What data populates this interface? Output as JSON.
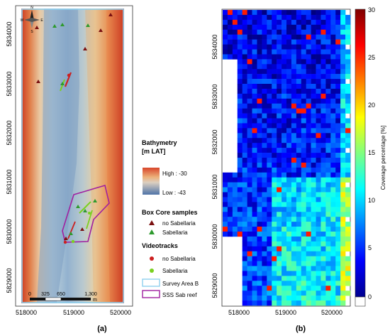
{
  "panel_a": {
    "label": "(a)",
    "x_ticks": [
      "518000",
      "519000",
      "520000"
    ],
    "y_ticks": [
      "5834000",
      "5833000",
      "5832000",
      "5831000",
      "5830000",
      "5829000"
    ],
    "compass": {
      "n": "N",
      "s": "S",
      "e": "E",
      "w": "W"
    },
    "scale_bar": {
      "ticks": [
        "0",
        "325",
        "650",
        "1,300"
      ],
      "unit": "m"
    },
    "legend": {
      "bathymetry_title": "Bathymetry",
      "bathymetry_unit": "[m LAT]",
      "high_label": "High : -30",
      "low_label": "Low : -43",
      "boxcore_title": "Box Core samples",
      "boxcore_items": [
        "no Sabellaria",
        "Sabellaria"
      ],
      "video_title": "Videotracks",
      "video_items": [
        "no Sabellaria",
        "Sabellaria"
      ],
      "survey_area": "Survey Area B",
      "sss_reef": "SSS Sab reef"
    },
    "colors": {
      "survey_outline": "#8fd0ee",
      "reef_outline": "#a020a0",
      "no_sab_boxcore": "#7a1010",
      "sab_boxcore": "#2e9a2e",
      "no_sab_video": "#cc2020",
      "sab_video": "#7ad020",
      "bathy_high": "#d84a2a",
      "bathy_low": "#5f86b8"
    }
  },
  "panel_b": {
    "label": "(b)",
    "x_ticks": [
      "518000",
      "519000",
      "520000"
    ],
    "y_ticks": [
      "5834000",
      "5833000",
      "5832000",
      "5831000",
      "5830000",
      "5829000"
    ],
    "colorbar_label": "Coverage percentage [%]",
    "colorbar_ticks": [
      "30",
      "25",
      "20",
      "15",
      "10",
      "5",
      "0"
    ],
    "colorbar_range": [
      0,
      30
    ],
    "colormap": "jet"
  }
}
